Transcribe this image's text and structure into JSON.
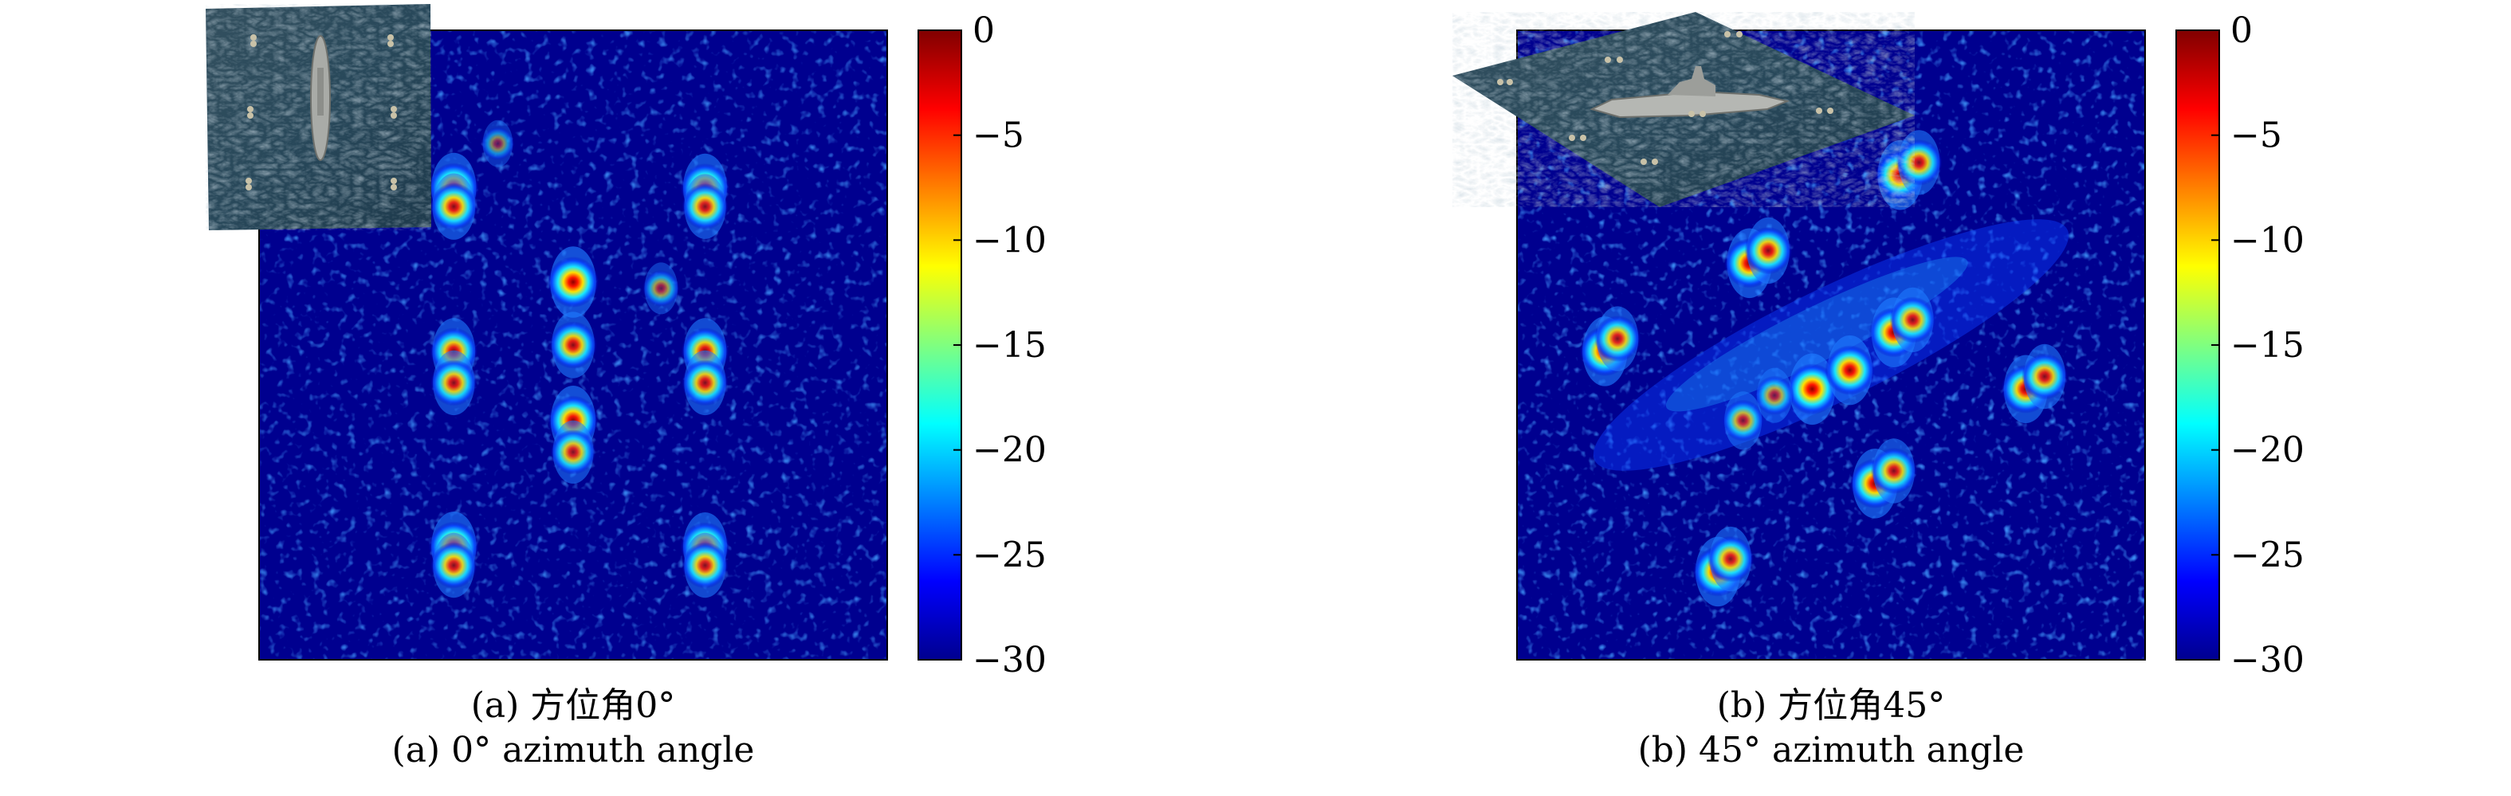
{
  "colors": {
    "background": "#00008F",
    "border": "#000000",
    "colormap": "jet"
  },
  "chart_data": [
    {
      "type": "heatmap",
      "title": "",
      "xlabel": "",
      "ylabel": "",
      "xlim": [
        0,
        1
      ],
      "ylim": [
        0,
        1
      ],
      "colorbar": {
        "ticks": [
          0,
          -5,
          -10,
          -15,
          -20,
          -25,
          -30
        ],
        "range": [
          -30,
          0
        ]
      },
      "caption_cn": "(a) 方位角0°",
      "caption_en": "(a) 0° azimuth angle",
      "inset_image": "ship-model-on-sea-surface-top-view",
      "scatterers": [
        {
          "x": 0.31,
          "y": 0.75,
          "value": -1
        },
        {
          "x": 0.31,
          "y": 0.72,
          "value": -3
        },
        {
          "x": 0.71,
          "y": 0.75,
          "value": -2
        },
        {
          "x": 0.71,
          "y": 0.72,
          "value": -4
        },
        {
          "x": 0.31,
          "y": 0.49,
          "value": -3
        },
        {
          "x": 0.31,
          "y": 0.44,
          "value": -4
        },
        {
          "x": 0.71,
          "y": 0.49,
          "value": -3
        },
        {
          "x": 0.71,
          "y": 0.44,
          "value": -4
        },
        {
          "x": 0.31,
          "y": 0.18,
          "value": -1
        },
        {
          "x": 0.31,
          "y": 0.15,
          "value": -4
        },
        {
          "x": 0.71,
          "y": 0.18,
          "value": -2
        },
        {
          "x": 0.71,
          "y": 0.15,
          "value": -4
        },
        {
          "x": 0.5,
          "y": 0.6,
          "value": 0
        },
        {
          "x": 0.5,
          "y": 0.5,
          "value": -3
        },
        {
          "x": 0.5,
          "y": 0.38,
          "value": -1
        },
        {
          "x": 0.5,
          "y": 0.33,
          "value": -5
        },
        {
          "x": 0.64,
          "y": 0.59,
          "value": -12
        },
        {
          "x": 0.38,
          "y": 0.82,
          "value": -15
        }
      ]
    },
    {
      "type": "heatmap",
      "title": "",
      "xlabel": "",
      "ylabel": "",
      "xlim": [
        0,
        1
      ],
      "ylim": [
        0,
        1
      ],
      "colorbar": {
        "ticks": [
          0,
          -5,
          -10,
          -15,
          -20,
          -25,
          -30
        ],
        "range": [
          -30,
          0
        ]
      },
      "caption_cn": "(b) 方位角45°",
      "caption_en": "(b) 45° azimuth angle",
      "inset_image": "ship-model-on-sea-surface-oblique-view",
      "scatterers": [
        {
          "x": 0.61,
          "y": 0.77,
          "value": -1
        },
        {
          "x": 0.64,
          "y": 0.79,
          "value": -4
        },
        {
          "x": 0.37,
          "y": 0.63,
          "value": -1
        },
        {
          "x": 0.4,
          "y": 0.65,
          "value": -3
        },
        {
          "x": 0.6,
          "y": 0.52,
          "value": -1
        },
        {
          "x": 0.63,
          "y": 0.54,
          "value": -4
        },
        {
          "x": 0.47,
          "y": 0.43,
          "value": 0
        },
        {
          "x": 0.53,
          "y": 0.46,
          "value": -1
        },
        {
          "x": 0.14,
          "y": 0.49,
          "value": -1
        },
        {
          "x": 0.16,
          "y": 0.51,
          "value": -4
        },
        {
          "x": 0.81,
          "y": 0.43,
          "value": -2
        },
        {
          "x": 0.84,
          "y": 0.45,
          "value": -4
        },
        {
          "x": 0.57,
          "y": 0.28,
          "value": -1
        },
        {
          "x": 0.6,
          "y": 0.3,
          "value": -4
        },
        {
          "x": 0.32,
          "y": 0.14,
          "value": -1
        },
        {
          "x": 0.34,
          "y": 0.16,
          "value": -4
        },
        {
          "x": 0.36,
          "y": 0.38,
          "value": -8
        },
        {
          "x": 0.41,
          "y": 0.42,
          "value": -10
        }
      ]
    }
  ]
}
